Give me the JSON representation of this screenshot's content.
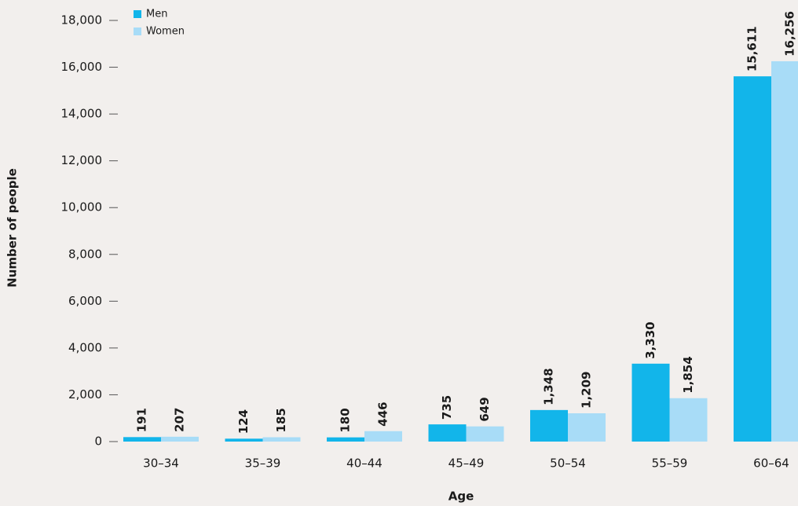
{
  "chart_data": {
    "type": "bar",
    "x_label": "Age",
    "y_label": "Number of people",
    "categories": [
      "30–34",
      "35–39",
      "40–44",
      "45–49",
      "50–54",
      "55–59",
      "60–64"
    ],
    "series": [
      {
        "name": "Men",
        "color": "#12b5ea",
        "values": [
          191,
          124,
          180,
          735,
          1348,
          3330,
          15611
        ],
        "value_labels": [
          "191",
          "124",
          "180",
          "735",
          "1,348",
          "3,330",
          "15,611"
        ]
      },
      {
        "name": "Women",
        "color": "#a8dcf7",
        "values": [
          207,
          185,
          446,
          649,
          1209,
          1854,
          16256
        ],
        "value_labels": [
          "207",
          "185",
          "446",
          "649",
          "1,209",
          "1,854",
          "16,256"
        ]
      }
    ],
    "ylim": [
      0,
      18000
    ],
    "yticks": [
      0,
      {
        "value": 2000,
        "label": "2,000"
      },
      {
        "value": 4000,
        "label": "4,000"
      },
      {
        "value": 6000,
        "label": "6,000"
      },
      {
        "value": 8000,
        "label": "8,000"
      },
      {
        "value": 10000,
        "label": "10,000"
      },
      {
        "value": 12000,
        "label": "12,000"
      },
      {
        "value": 14000,
        "label": "14,000"
      },
      {
        "value": 16000,
        "label": "16,000"
      },
      {
        "value": 18000,
        "label": "18,000"
      }
    ],
    "legend": "top-left"
  }
}
